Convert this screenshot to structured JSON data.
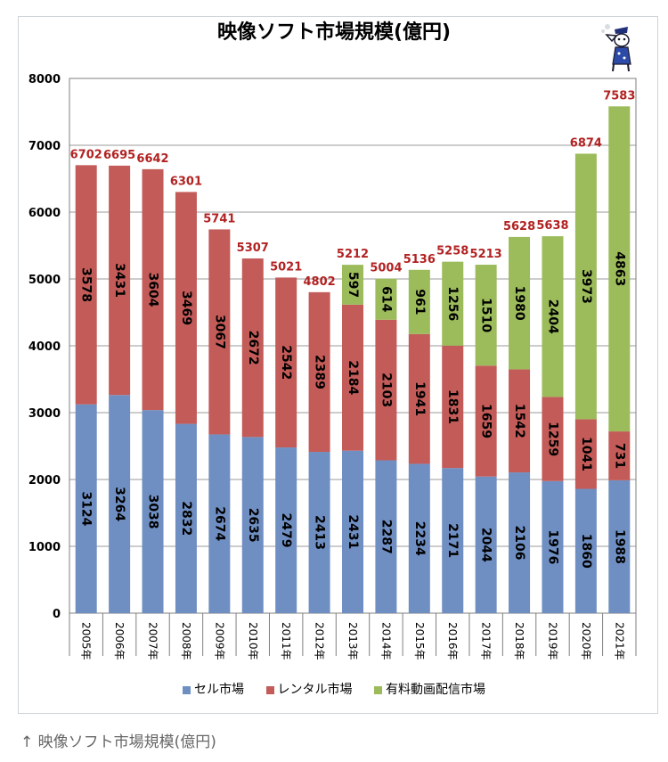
{
  "caption": {
    "arrow": "↑",
    "text": "映像ソフト市場規模(億円)"
  },
  "chart_data": {
    "type": "bar",
    "stacked": true,
    "title": "映像ソフト市場規模(億円)",
    "xlabel": "",
    "ylabel": "",
    "ylim": [
      0,
      8000
    ],
    "yticks": [
      0,
      1000,
      2000,
      3000,
      4000,
      5000,
      6000,
      7000,
      8000
    ],
    "grid": true,
    "legend_position": "bottom",
    "categories": [
      "2005年",
      "2006年",
      "2007年",
      "2008年",
      "2009年",
      "2010年",
      "2011年",
      "2012年",
      "2013年",
      "2014年",
      "2015年",
      "2016年",
      "2017年",
      "2018年",
      "2019年",
      "2020年",
      "2021年"
    ],
    "series": [
      {
        "name": "セル市場",
        "color": "#6f8fc3",
        "values": [
          3124,
          3264,
          3038,
          2832,
          2674,
          2635,
          2479,
          2413,
          2431,
          2287,
          2234,
          2171,
          2044,
          2106,
          1976,
          1860,
          1988
        ]
      },
      {
        "name": "レンタル市場",
        "color": "#c35b58",
        "values": [
          3578,
          3431,
          3604,
          3469,
          3067,
          2672,
          2542,
          2389,
          2184,
          2103,
          1941,
          1831,
          1659,
          1542,
          1259,
          1041,
          731
        ]
      },
      {
        "name": "有料動画配信市場",
        "color": "#9cbb5b",
        "values": [
          null,
          null,
          null,
          null,
          null,
          null,
          null,
          null,
          597,
          614,
          961,
          1256,
          1510,
          1980,
          2404,
          3973,
          4863
        ]
      }
    ],
    "totals": [
      6702,
      6695,
      6642,
      6301,
      5741,
      5307,
      5021,
      4802,
      5212,
      5004,
      5136,
      5258,
      5213,
      5628,
      5638,
      6874,
      7583
    ],
    "total_label_color": "#b22222"
  }
}
